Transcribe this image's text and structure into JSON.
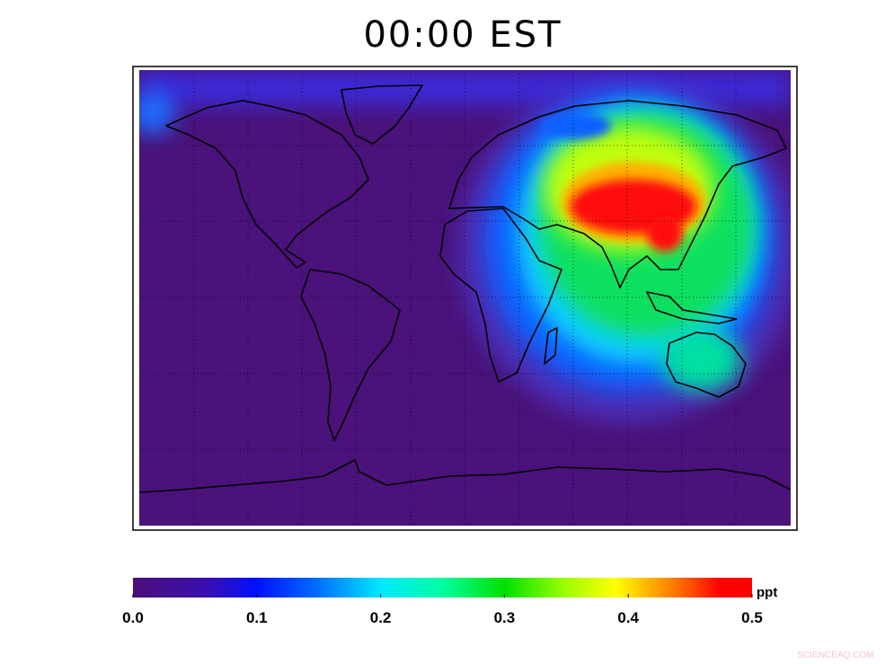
{
  "title": "00:00 EST",
  "colorbar": {
    "unit": "ppt",
    "lim": [
      0,
      0.5
    ],
    "ticks": [
      {
        "value": 0,
        "label": "0.0"
      },
      0.1,
      0.2,
      0.3,
      0.4,
      0.5
    ]
  },
  "watermark": "SCIENCEAQ.COM"
}
